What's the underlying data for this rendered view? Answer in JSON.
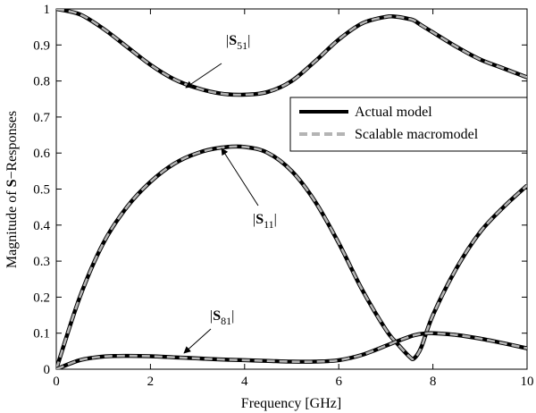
{
  "chart_data": {
    "type": "line",
    "title": "",
    "xlabel": "Frequency [GHz]",
    "ylabel": "Magnitude of S−Responses",
    "ylabel_parts": {
      "prefix": "Magnitude of ",
      "bold": "S",
      "suffix": "−Responses"
    },
    "xlim": [
      0,
      10
    ],
    "ylim": [
      0,
      1
    ],
    "xticks": [
      "0",
      "2",
      "4",
      "6",
      "8",
      "10"
    ],
    "yticks": [
      "0",
      "0.1",
      "0.2",
      "0.3",
      "0.4",
      "0.5",
      "0.6",
      "0.7",
      "0.8",
      "0.9",
      "1"
    ],
    "grid": false,
    "legend": {
      "placement": "upper-right-inside",
      "entries": [
        {
          "label": "Actual model",
          "color": "#000000",
          "style": "solid"
        },
        {
          "label": "Scalable macromodel",
          "color": "#b4b4b4",
          "style": "dashed"
        }
      ]
    },
    "x": [
      0,
      0.5,
      1,
      1.5,
      2,
      2.5,
      3,
      3.5,
      4,
      4.5,
      5,
      5.5,
      6,
      6.5,
      7,
      7.25,
      7.5,
      7.6,
      7.75,
      8,
      8.5,
      9,
      9.5,
      10
    ],
    "series": [
      {
        "key": "S51",
        "values": [
          1.0,
          0.985,
          0.945,
          0.895,
          0.845,
          0.805,
          0.78,
          0.765,
          0.762,
          0.77,
          0.8,
          0.855,
          0.915,
          0.96,
          0.978,
          0.978,
          0.972,
          0.968,
          0.955,
          0.935,
          0.895,
          0.86,
          0.835,
          0.81
        ]
      },
      {
        "key": "S11",
        "values": [
          0.0,
          0.2,
          0.35,
          0.45,
          0.52,
          0.57,
          0.6,
          0.615,
          0.617,
          0.6,
          0.55,
          0.465,
          0.35,
          0.22,
          0.11,
          0.07,
          0.035,
          0.03,
          0.06,
          0.15,
          0.28,
          0.38,
          0.45,
          0.51
        ]
      },
      {
        "key": "S81",
        "values": [
          0.0,
          0.025,
          0.035,
          0.037,
          0.036,
          0.033,
          0.03,
          0.027,
          0.025,
          0.023,
          0.021,
          0.021,
          0.025,
          0.04,
          0.065,
          0.078,
          0.09,
          0.094,
          0.098,
          0.1,
          0.095,
          0.085,
          0.072,
          0.058
        ]
      }
    ],
    "annotations": [
      {
        "key": "S51",
        "text_pre": "|",
        "bold": "S",
        "sub": "51",
        "text_post": "|"
      },
      {
        "key": "S11",
        "text_pre": "|",
        "bold": "S",
        "sub": "11",
        "text_post": "|"
      },
      {
        "key": "S81",
        "text_pre": "|",
        "bold": "S",
        "sub": "81",
        "text_post": "|"
      }
    ]
  }
}
